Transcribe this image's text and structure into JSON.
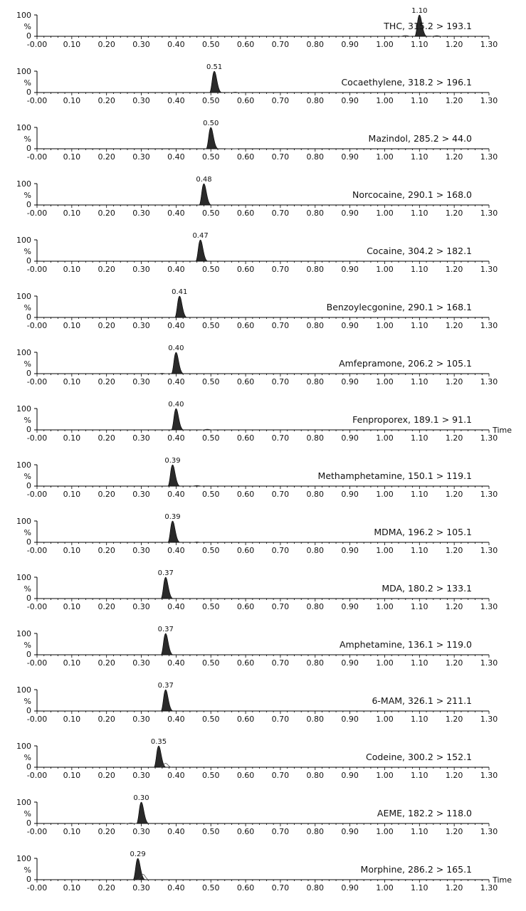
{
  "chart_data": [
    {
      "type": "area",
      "title": "THC, 315.2 > 193.1",
      "xlim": [
        0,
        1.3
      ],
      "ylim": [
        0,
        100
      ],
      "ylabel": "%",
      "peaks": [
        {
          "x": 1.1,
          "y": 100,
          "label": "1.10"
        }
      ],
      "minor_peaks": [
        {
          "x": 1.06,
          "y": 4
        },
        {
          "x": 1.15,
          "y": 3
        }
      ],
      "show_time_label": false
    },
    {
      "type": "area",
      "title": "Cocaethylene, 318.2 > 196.1",
      "xlim": [
        0,
        1.3
      ],
      "ylim": [
        0,
        100
      ],
      "ylabel": "%",
      "peaks": [
        {
          "x": 0.51,
          "y": 100,
          "label": "0.51"
        }
      ],
      "minor_peaks": [
        {
          "x": 0.57,
          "y": 2
        }
      ],
      "show_time_label": false
    },
    {
      "type": "area",
      "title": "Mazindol, 285.2 > 44.0",
      "xlim": [
        0,
        1.3
      ],
      "ylim": [
        0,
        100
      ],
      "ylabel": "%",
      "peaks": [
        {
          "x": 0.5,
          "y": 100,
          "label": "0.50"
        }
      ],
      "minor_peaks": [
        {
          "x": 0.56,
          "y": 1
        }
      ],
      "show_time_label": false
    },
    {
      "type": "area",
      "title": "Norcocaine, 290.1 > 168.0",
      "xlim": [
        0,
        1.3
      ],
      "ylim": [
        0,
        100
      ],
      "ylabel": "%",
      "peaks": [
        {
          "x": 0.48,
          "y": 100,
          "label": "0.48"
        }
      ],
      "minor_peaks": [],
      "show_time_label": false
    },
    {
      "type": "area",
      "title": "Cocaine, 304.2 > 182.1",
      "xlim": [
        0,
        1.3
      ],
      "ylim": [
        0,
        100
      ],
      "ylabel": "%",
      "peaks": [
        {
          "x": 0.47,
          "y": 100,
          "label": "0.47"
        }
      ],
      "minor_peaks": [],
      "show_time_label": false
    },
    {
      "type": "area",
      "title": "Benzoylecgonine, 290.1 > 168.1",
      "xlim": [
        0,
        1.3
      ],
      "ylim": [
        0,
        100
      ],
      "ylabel": "%",
      "peaks": [
        {
          "x": 0.41,
          "y": 100,
          "label": "0.41"
        }
      ],
      "minor_peaks": [],
      "show_time_label": false
    },
    {
      "type": "area",
      "title": "Amfepramone, 206.2 > 105.1",
      "xlim": [
        0,
        1.3
      ],
      "ylim": [
        0,
        100
      ],
      "ylabel": "%",
      "peaks": [
        {
          "x": 0.4,
          "y": 100,
          "label": "0.40"
        }
      ],
      "minor_peaks": [
        {
          "x": 0.36,
          "y": 2
        }
      ],
      "show_time_label": false
    },
    {
      "type": "area",
      "title": "Fenproporex, 189.1 > 91.1",
      "xlim": [
        0,
        1.3
      ],
      "ylim": [
        0,
        100
      ],
      "ylabel": "%",
      "peaks": [
        {
          "x": 0.4,
          "y": 100,
          "label": "0.40"
        }
      ],
      "minor_peaks": [
        {
          "x": 0.49,
          "y": 3
        }
      ],
      "show_time_label": true
    },
    {
      "type": "area",
      "title": "Methamphetamine, 150.1 > 119.1",
      "xlim": [
        0,
        1.3
      ],
      "ylim": [
        0,
        100
      ],
      "ylabel": "%",
      "peaks": [
        {
          "x": 0.39,
          "y": 100,
          "label": "0.39"
        }
      ],
      "minor_peaks": [
        {
          "x": 0.46,
          "y": 3
        }
      ],
      "show_time_label": false
    },
    {
      "type": "area",
      "title": "MDMA, 196.2 > 105.1",
      "xlim": [
        0,
        1.3
      ],
      "ylim": [
        0,
        100
      ],
      "ylabel": "%",
      "peaks": [
        {
          "x": 0.39,
          "y": 100,
          "label": "0.39"
        }
      ],
      "minor_peaks": [
        {
          "x": 0.46,
          "y": 2
        }
      ],
      "show_time_label": false
    },
    {
      "type": "area",
      "title": "MDA, 180.2 > 133.1",
      "xlim": [
        0,
        1.3
      ],
      "ylim": [
        0,
        100
      ],
      "ylabel": "%",
      "peaks": [
        {
          "x": 0.37,
          "y": 100,
          "label": "0.37"
        }
      ],
      "minor_peaks": [],
      "show_time_label": false
    },
    {
      "type": "area",
      "title": "Amphetamine, 136.1 > 119.0",
      "xlim": [
        0,
        1.3
      ],
      "ylim": [
        0,
        100
      ],
      "ylabel": "%",
      "peaks": [
        {
          "x": 0.37,
          "y": 100,
          "label": "0.37"
        }
      ],
      "minor_peaks": [],
      "show_time_label": false
    },
    {
      "type": "area",
      "title": "6-MAM, 326.1 > 211.1",
      "xlim": [
        0,
        1.3
      ],
      "ylim": [
        0,
        100
      ],
      "ylabel": "%",
      "peaks": [
        {
          "x": 0.37,
          "y": 100,
          "label": "0.37"
        }
      ],
      "minor_peaks": [],
      "show_time_label": false
    },
    {
      "type": "area",
      "title": "Codeine, 300.2 > 152.1",
      "xlim": [
        0,
        1.3
      ],
      "ylim": [
        0,
        100
      ],
      "ylabel": "%",
      "peaks": [
        {
          "x": 0.35,
          "y": 100,
          "label": "0.35"
        }
      ],
      "minor_peaks": [
        {
          "x": 0.37,
          "y": 18
        }
      ],
      "show_time_label": false
    },
    {
      "type": "area",
      "title": "AEME, 182.2 > 118.0",
      "xlim": [
        0,
        1.3
      ],
      "ylim": [
        0,
        100
      ],
      "ylabel": "%",
      "peaks": [
        {
          "x": 0.3,
          "y": 100,
          "label": "0.30"
        }
      ],
      "minor_peaks": [
        {
          "x": 0.27,
          "y": 2
        }
      ],
      "show_time_label": false
    },
    {
      "type": "area",
      "title": "Morphine, 286.2 > 165.1",
      "xlim": [
        0,
        1.3
      ],
      "ylim": [
        0,
        100
      ],
      "ylabel": "%",
      "peaks": [
        {
          "x": 0.29,
          "y": 100,
          "label": "0.29"
        }
      ],
      "minor_peaks": [
        {
          "x": 0.305,
          "y": 25
        }
      ],
      "show_time_label": true
    }
  ],
  "shared": {
    "x_ticks": [
      "-0.00",
      "0.10",
      "0.20",
      "0.30",
      "0.40",
      "0.50",
      "0.60",
      "0.70",
      "0.80",
      "0.90",
      "1.00",
      "1.10",
      "1.20",
      "1.30"
    ],
    "x_tick_values": [
      0,
      0.1,
      0.2,
      0.3,
      0.4,
      0.5,
      0.6,
      0.7,
      0.8,
      0.9,
      1.0,
      1.1,
      1.2,
      1.3
    ],
    "y_ticks": [
      "100",
      "0"
    ],
    "time_label": "Time",
    "colors": {
      "peak_fill": "#2a2a2a",
      "axis": "#000000",
      "text": "#111111"
    }
  }
}
